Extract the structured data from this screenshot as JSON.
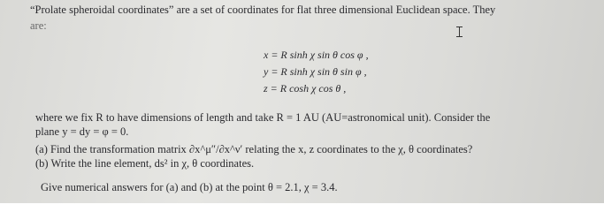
{
  "problem": {
    "intro_lines": [
      "“Prolate spheroidal coordinates” are a set of coordinates for flat three dimensional Euclidean space. They",
      "are:"
    ],
    "equations": [
      "x = R sinh χ sin θ cos φ ,",
      "y = R sinh χ sin θ sin φ ,",
      "z = R cosh χ cos θ ,"
    ],
    "paragraph_lines": [
      "where we fix R to have dimensions of length and take R = 1 AU (AU=astronomical unit). Consider the",
      "plane y = dy = φ = 0."
    ],
    "parts": [
      "(a) Find the transformation matrix ∂x^μ″/∂x^ν′ relating the x, z coordinates to the χ, θ coordinates?",
      "(b) Write the line element, ds² in χ, θ coordinates."
    ],
    "final": "Give numerical answers for (a) and (b) at the point θ = 2.1, χ = 3.4."
  }
}
